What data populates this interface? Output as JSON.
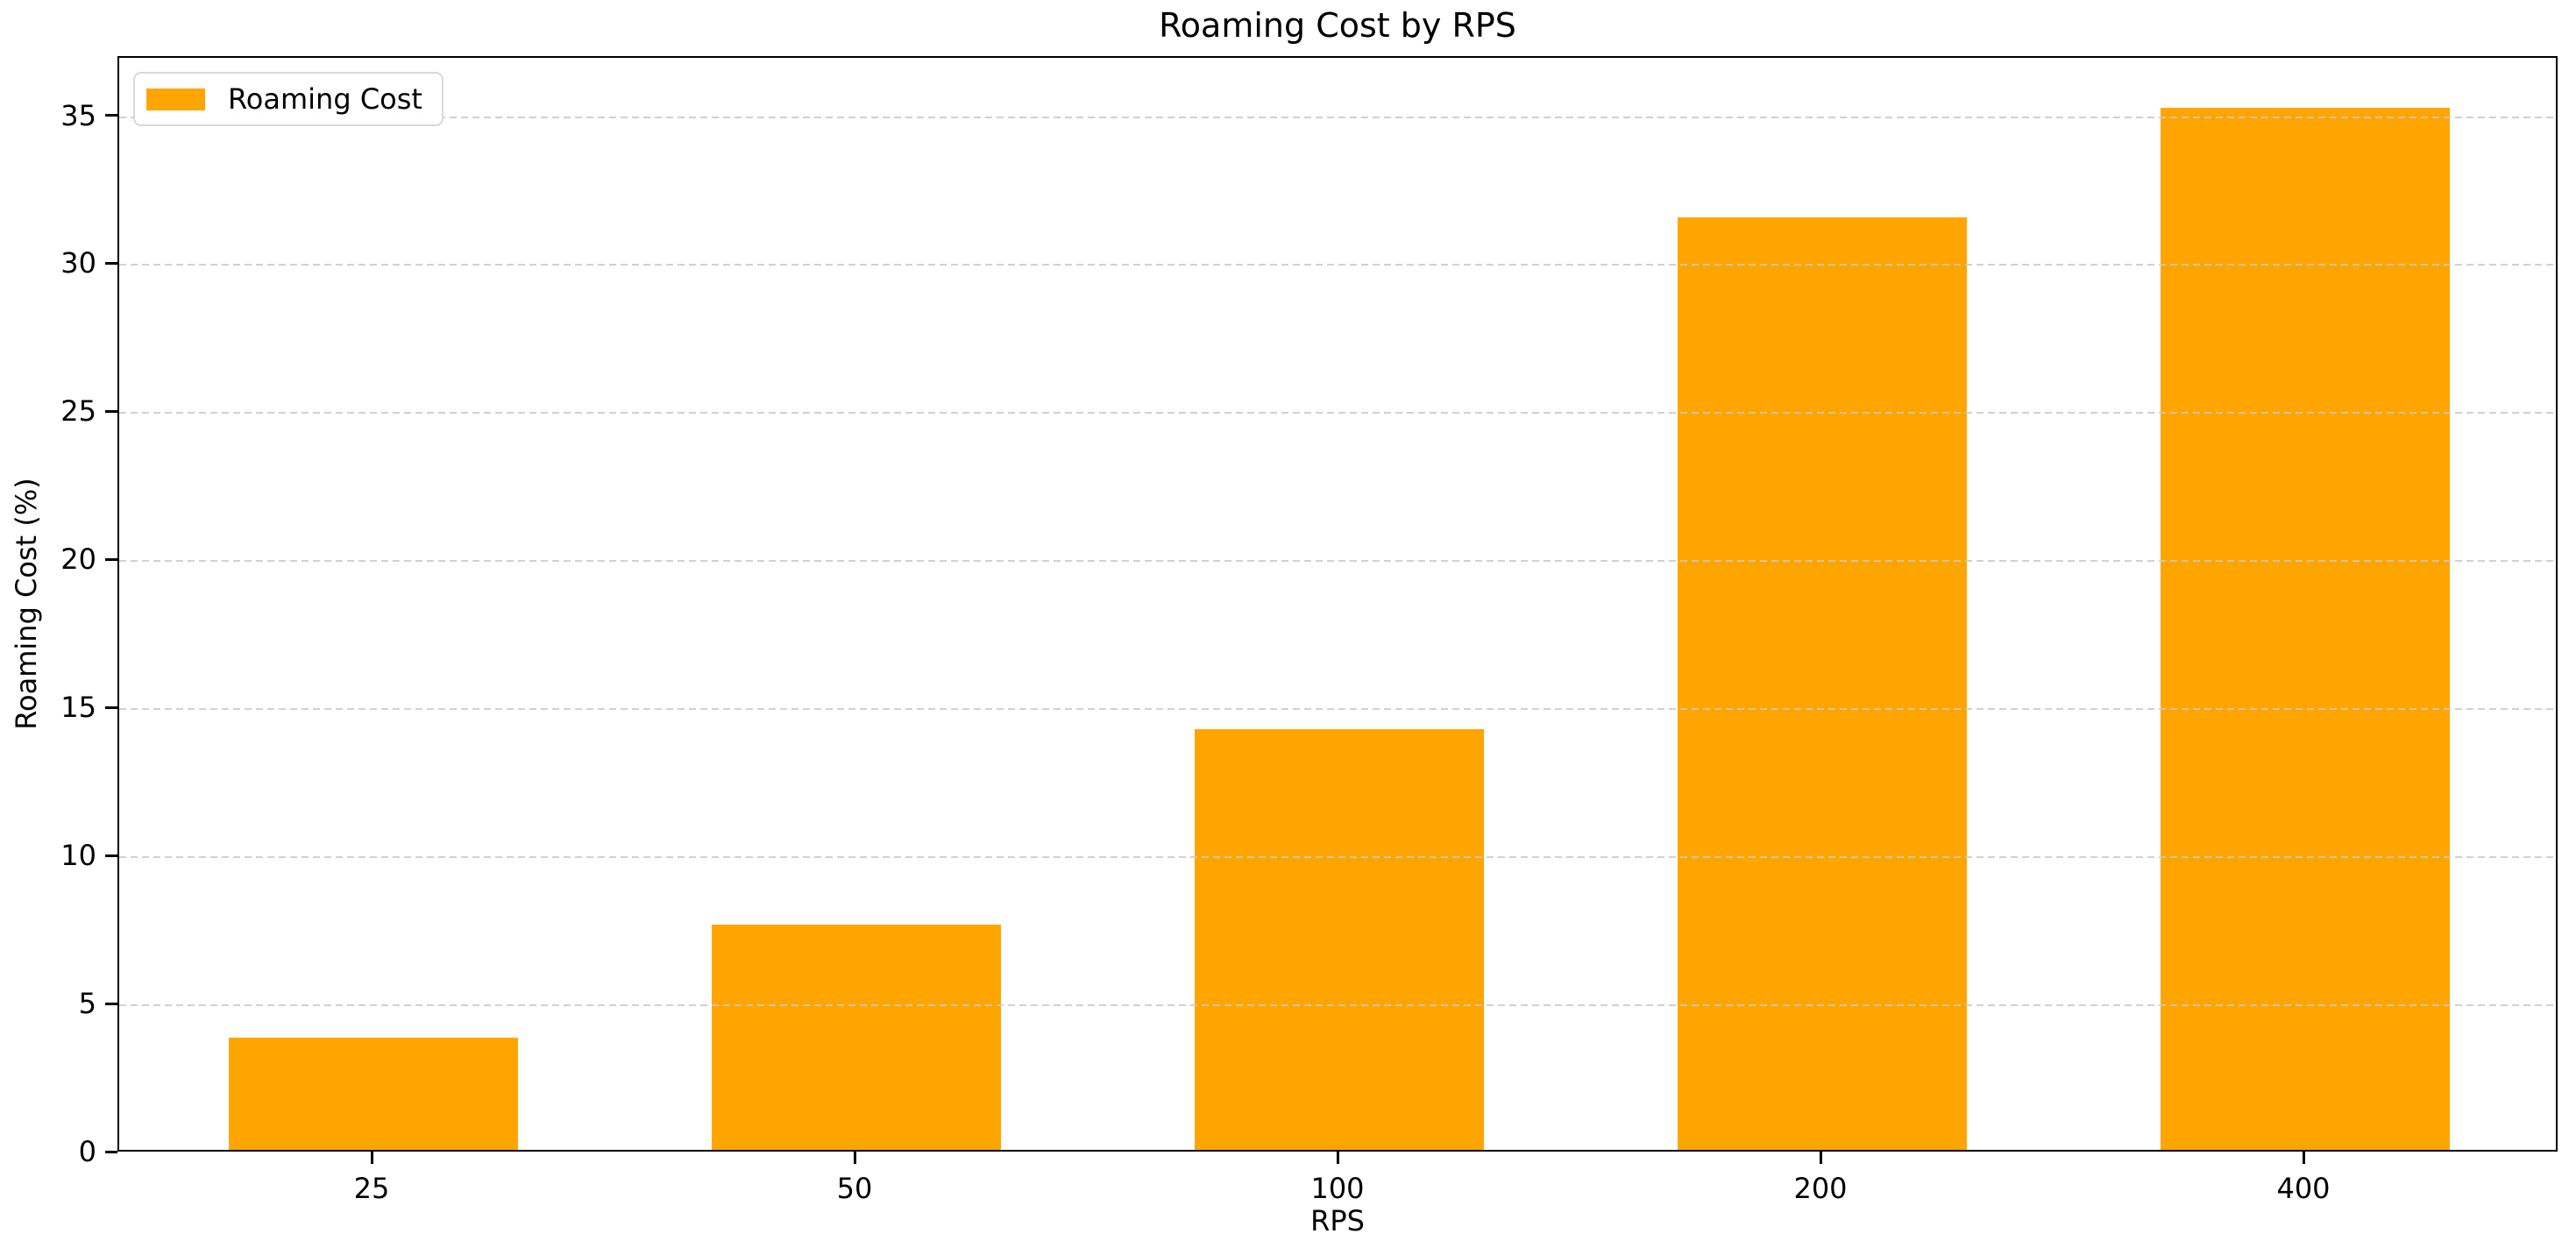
{
  "chart_data": {
    "type": "bar",
    "title": "Roaming Cost by RPS",
    "xlabel": "RPS",
    "ylabel": "Roaming Cost (%)",
    "categories": [
      "25",
      "50",
      "100",
      "200",
      "400"
    ],
    "series": [
      {
        "name": "Roaming Cost",
        "color": "#FFA500",
        "values": [
          3.8,
          7.6,
          14.2,
          31.5,
          35.2
        ]
      }
    ],
    "ylim": [
      0,
      37
    ],
    "yticks": [
      0,
      5,
      10,
      15,
      20,
      25,
      30,
      35
    ],
    "grid": {
      "axis": "y",
      "style": "dashed",
      "color": "#c9c9c9",
      "drawn_over_bars": true
    },
    "legend": {
      "position": "upper-left",
      "label": "Roaming Cost"
    },
    "colors": {
      "bar": "#FFA500",
      "axis": "#000000",
      "background": "#ffffff",
      "legend_border": "#d9d9d9"
    }
  }
}
